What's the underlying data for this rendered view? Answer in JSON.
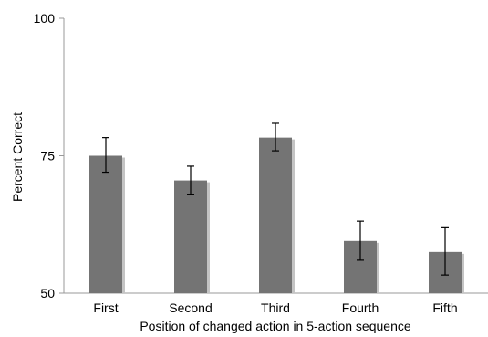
{
  "chart_data": {
    "type": "bar",
    "title": "",
    "xlabel": "Position of changed action in 5-action sequence",
    "ylabel": "Percent Correct",
    "categories": [
      "First",
      "Second",
      "Third",
      "Fourth",
      "Fifth"
    ],
    "values": [
      75,
      70.5,
      78.3,
      59.5,
      57.5
    ],
    "error_bars": [
      [
        72,
        78.3
      ],
      [
        68,
        73.1
      ],
      [
        75.9,
        80.9
      ],
      [
        56,
        63.1
      ],
      [
        53.3,
        61.9
      ]
    ],
    "ylim": [
      50,
      100
    ],
    "yticks": [
      50,
      75,
      100
    ],
    "grid": false,
    "legend": "none",
    "colors": {
      "bar": "#747474",
      "bar_shadow": "#c4c4c4",
      "axis": "#999999",
      "error": "#000000"
    }
  }
}
